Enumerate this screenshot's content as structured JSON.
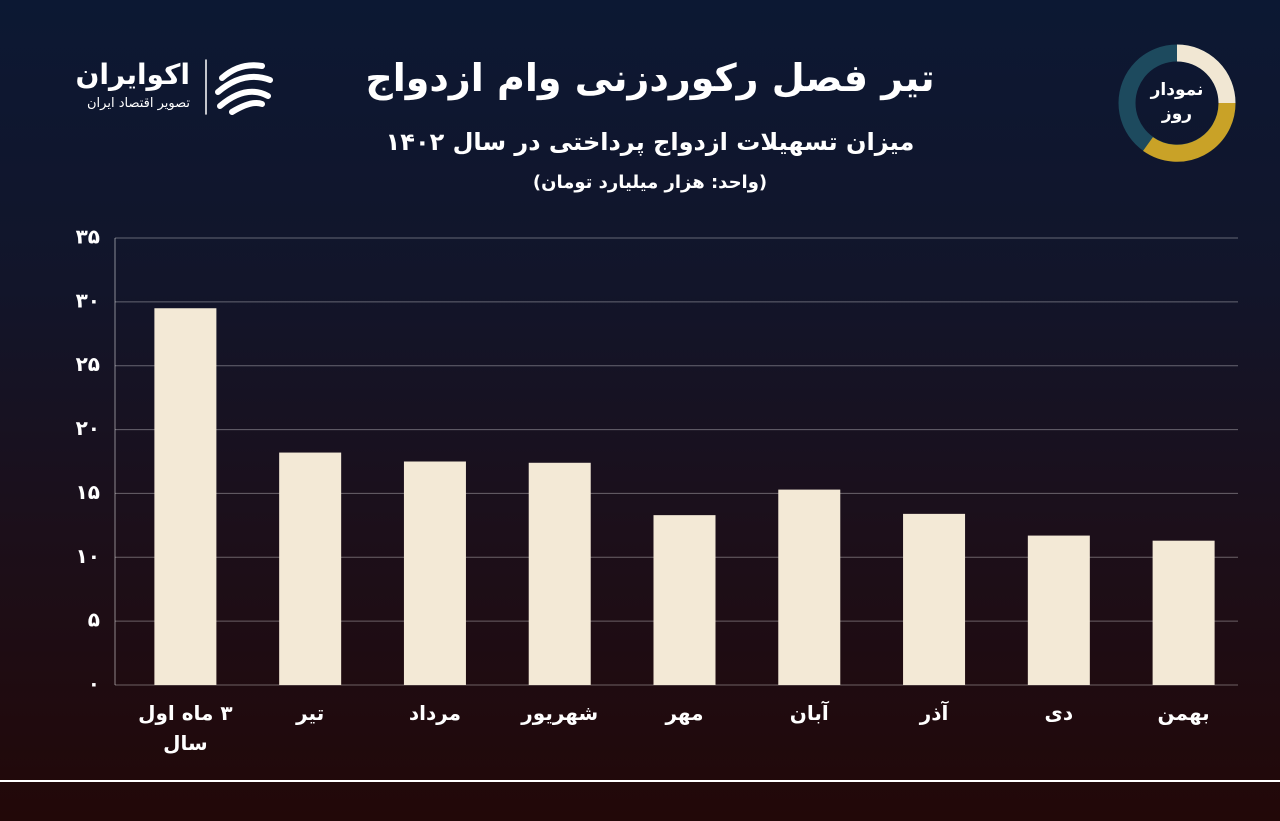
{
  "logo": {
    "name": "اکوایران",
    "tagline": "تصویر اقتصاد ایران"
  },
  "badge": "نمودار روز",
  "chart_data": {
    "type": "bar",
    "title": "تیر فصل رکوردزنی وام ازدواج",
    "subtitle": "میزان تسهیلات ازدواج پرداختی در سال ۱۴۰۲",
    "unit": "(واحد: هزار میلیارد تومان)",
    "categories": [
      "۳ ماه اول سال",
      "تیر",
      "مرداد",
      "شهریور",
      "مهر",
      "آبان",
      "آذر",
      "دی",
      "بهمن"
    ],
    "values": [
      29.5,
      18.2,
      17.5,
      17.4,
      13.3,
      15.3,
      13.4,
      11.7,
      11.3
    ],
    "color": "#f3e9d6",
    "ylim": [
      0,
      35
    ],
    "yticks": [
      {
        "value": 0,
        "label": "۰"
      },
      {
        "value": 5,
        "label": "۵"
      },
      {
        "value": 10,
        "label": "۱۰"
      },
      {
        "value": 15,
        "label": "۱۵"
      },
      {
        "value": 20,
        "label": "۲۰"
      },
      {
        "value": 25,
        "label": "۲۵"
      },
      {
        "value": 30,
        "label": "۳۰"
      },
      {
        "value": 35,
        "label": "۳۵"
      }
    ],
    "grid": true
  }
}
